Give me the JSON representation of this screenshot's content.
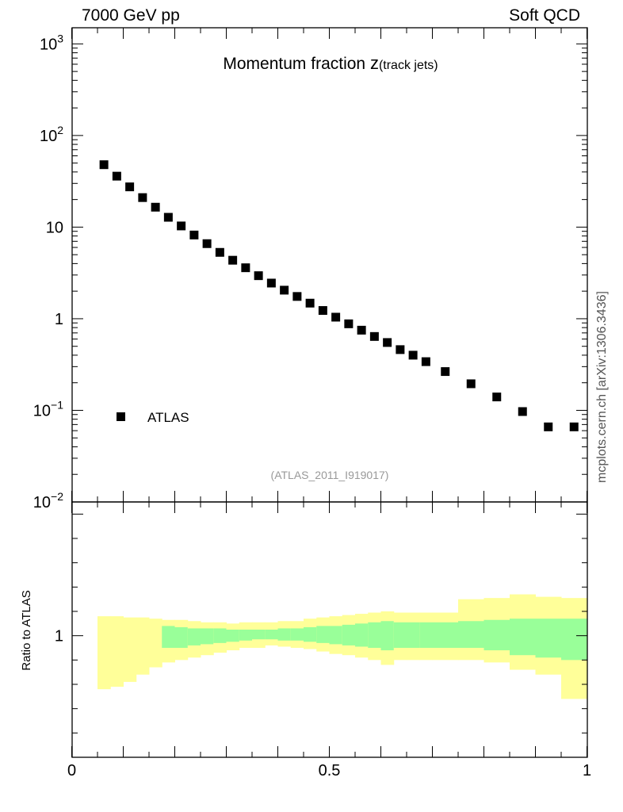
{
  "header": {
    "left": "7000 GeV pp",
    "right": "Soft QCD"
  },
  "side_label": "mcplots.cern.ch [arXiv:1306.3436]",
  "colors": {
    "inner_band": "#99ff99",
    "outer_band": "#ffff99",
    "marker": "#000000",
    "analysis_text": "#999999",
    "side_text": "#555555"
  },
  "chart_data": [
    {
      "type": "scatter",
      "title_main": "Momentum fraction ",
      "title_var": "z",
      "title_sub": "(track jets)",
      "y_scale": "log",
      "ylim": [
        0.01,
        1500
      ],
      "xlim": [
        0,
        1
      ],
      "y_ticks": [
        {
          "v": 1000,
          "base": "10",
          "exp": "3"
        },
        {
          "v": 100,
          "base": "10",
          "exp": "2"
        },
        {
          "v": 10,
          "base": "10",
          "exp": ""
        },
        {
          "v": 1,
          "base": "1",
          "exp": ""
        },
        {
          "v": 0.1,
          "base": "10",
          "exp": "−1"
        },
        {
          "v": 0.01,
          "base": "10",
          "exp": "−2"
        }
      ],
      "legend": {
        "label": "ATLAS",
        "position": "lower-left"
      },
      "annotation": "(ATLAS_2011_I919017)",
      "series": [
        {
          "name": "ATLAS",
          "marker": "square",
          "x": [
            0.0625,
            0.0875,
            0.1125,
            0.1375,
            0.1625,
            0.1875,
            0.2125,
            0.2375,
            0.2625,
            0.2875,
            0.3125,
            0.3375,
            0.3625,
            0.3875,
            0.4125,
            0.4375,
            0.4625,
            0.4875,
            0.5125,
            0.5375,
            0.5625,
            0.5875,
            0.6125,
            0.6375,
            0.6625,
            0.6875,
            0.725,
            0.775,
            0.825,
            0.875,
            0.925,
            0.975
          ],
          "y": [
            48,
            36,
            27.5,
            21,
            16.5,
            12.8,
            10.3,
            8.2,
            6.6,
            5.3,
            4.35,
            3.6,
            2.95,
            2.45,
            2.05,
            1.75,
            1.48,
            1.23,
            1.04,
            0.88,
            0.75,
            0.64,
            0.55,
            0.46,
            0.4,
            0.34,
            0.265,
            0.195,
            0.14,
            0.097,
            0.066,
            0.066
          ]
        }
      ]
    },
    {
      "type": "area",
      "ylabel": "Ratio to ATLAS",
      "xlim": [
        0,
        1
      ],
      "x_ticks": [
        {
          "v": 0,
          "label": "0"
        },
        {
          "v": 0.5,
          "label": "0.5"
        },
        {
          "v": 1,
          "label": "1"
        }
      ],
      "ylim": [
        0.5,
        1.55
      ],
      "y_ticks": [
        {
          "v": 1,
          "label": "1"
        }
      ],
      "bands": {
        "edges": [
          0.05,
          0.075,
          0.1,
          0.125,
          0.15,
          0.175,
          0.2,
          0.225,
          0.25,
          0.275,
          0.3,
          0.325,
          0.35,
          0.375,
          0.4,
          0.425,
          0.45,
          0.475,
          0.5,
          0.525,
          0.55,
          0.575,
          0.6,
          0.625,
          0.65,
          0.675,
          0.7,
          0.75,
          0.8,
          0.85,
          0.9,
          0.95,
          1.0
        ],
        "outer_low": [
          0.78,
          0.79,
          0.81,
          0.84,
          0.87,
          0.89,
          0.9,
          0.91,
          0.92,
          0.93,
          0.94,
          0.95,
          0.95,
          0.96,
          0.955,
          0.95,
          0.945,
          0.935,
          0.925,
          0.92,
          0.91,
          0.9,
          0.88,
          0.9,
          0.9,
          0.9,
          0.9,
          0.9,
          0.89,
          0.86,
          0.84,
          0.74
        ],
        "inner_low": [
          0.0,
          0.0,
          0.0,
          0.0,
          0.0,
          0.95,
          0.95,
          0.96,
          0.965,
          0.97,
          0.975,
          0.98,
          0.985,
          0.985,
          0.98,
          0.98,
          0.975,
          0.97,
          0.965,
          0.96,
          0.955,
          0.95,
          0.94,
          0.95,
          0.95,
          0.95,
          0.95,
          0.95,
          0.94,
          0.92,
          0.91,
          0.9
        ],
        "inner_high": [
          0.0,
          0.0,
          0.0,
          0.0,
          0.0,
          1.04,
          1.035,
          1.03,
          1.03,
          1.03,
          1.025,
          1.025,
          1.025,
          1.025,
          1.03,
          1.03,
          1.035,
          1.04,
          1.04,
          1.045,
          1.05,
          1.055,
          1.06,
          1.055,
          1.055,
          1.055,
          1.055,
          1.06,
          1.065,
          1.07,
          1.07,
          1.07
        ],
        "outer_high": [
          1.08,
          1.08,
          1.075,
          1.075,
          1.07,
          1.065,
          1.065,
          1.06,
          1.055,
          1.055,
          1.05,
          1.055,
          1.055,
          1.055,
          1.06,
          1.06,
          1.07,
          1.075,
          1.08,
          1.085,
          1.09,
          1.095,
          1.1,
          1.095,
          1.095,
          1.095,
          1.095,
          1.15,
          1.155,
          1.17,
          1.16,
          1.155
        ]
      }
    }
  ]
}
